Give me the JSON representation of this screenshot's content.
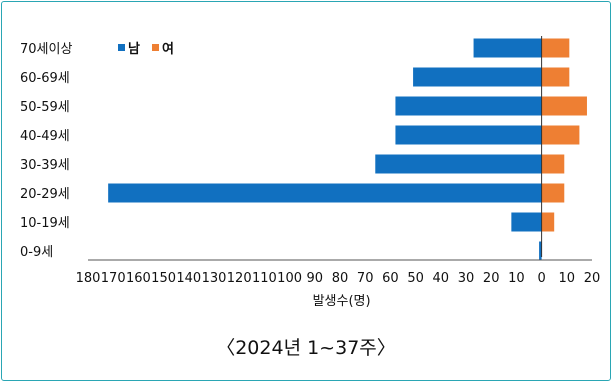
{
  "caption": "〈2024년 1~37주〉",
  "chart_data": {
    "type": "bar",
    "orientation": "horizontal-diverging",
    "categories": [
      "70세이상",
      "60-69세",
      "50-59세",
      "40-49세",
      "30-39세",
      "20-29세",
      "10-19세",
      "0-9세"
    ],
    "series": [
      {
        "name": "남",
        "color": "#1170c0",
        "values": [
          27,
          51,
          58,
          58,
          66,
          172,
          12,
          1
        ]
      },
      {
        "name": "여",
        "color": "#ee7f33",
        "values": [
          11,
          11,
          18,
          15,
          9,
          9,
          5,
          0
        ]
      }
    ],
    "x_ticks": [
      "180",
      "170",
      "160",
      "150",
      "140",
      "130",
      "120",
      "110",
      "100",
      "90",
      "80",
      "70",
      "60",
      "50",
      "40",
      "30",
      "20",
      "10",
      "0",
      "10",
      "20"
    ],
    "xlim": [
      -180,
      20
    ],
    "xlabel": "발생수(명)",
    "legend_position": "top-left",
    "grid": false
  }
}
